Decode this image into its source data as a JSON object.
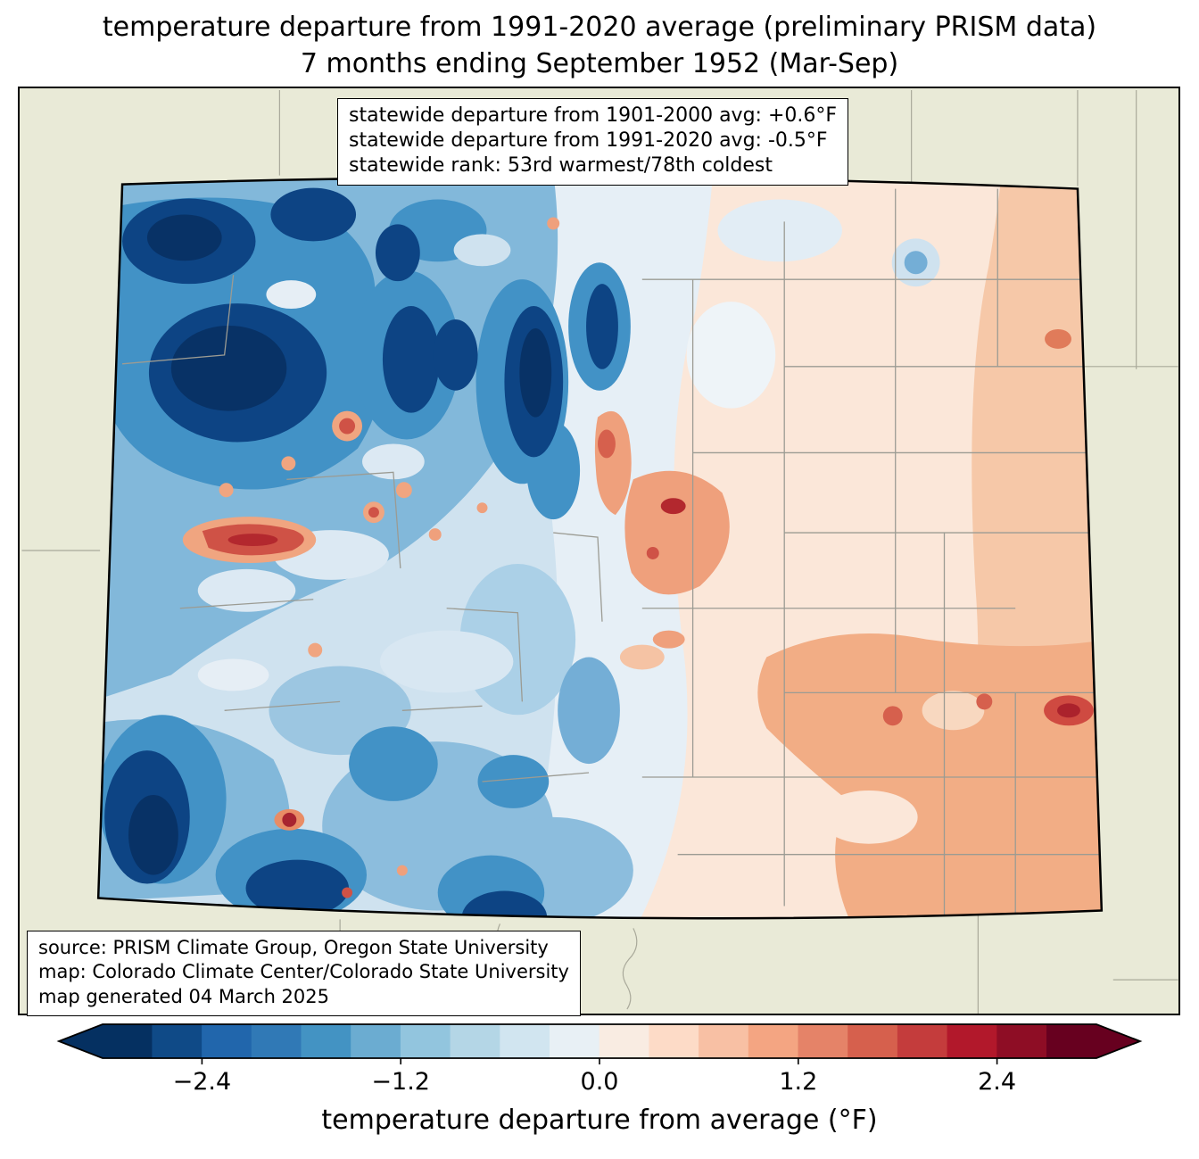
{
  "title": {
    "line1": "temperature departure from 1991-2020 average (preliminary PRISM data)",
    "line2": "7 months ending September 1952 (Mar-Sep)"
  },
  "stats_box": {
    "lines": [
      "statewide departure from 1901-2000 avg: +0.6°F",
      "statewide departure from 1991-2020 avg: -0.5°F",
      "statewide rank: 53rd warmest/78th coldest"
    ]
  },
  "source_box": {
    "lines": [
      "source: PRISM Climate Group, Oregon State University",
      "map: Colorado Climate Center/Colorado State University",
      "map generated 04 March 2025"
    ]
  },
  "colorbar": {
    "label": "temperature departure from average (°F)",
    "range": [
      -3.0,
      3.0
    ],
    "ticks": [
      {
        "value": -2.4,
        "label": "−2.4"
      },
      {
        "value": -1.2,
        "label": "−1.2"
      },
      {
        "value": 0.0,
        "label": "0.0"
      },
      {
        "value": 1.2,
        "label": "1.2"
      },
      {
        "value": 2.4,
        "label": "2.4"
      }
    ],
    "colors": [
      "#053061",
      "#0f4a87",
      "#2166ac",
      "#3079b6",
      "#4393c3",
      "#6bacd1",
      "#92c5de",
      "#b4d6e6",
      "#d1e5f0",
      "#e8f0f5",
      "#f9ece2",
      "#fddbc7",
      "#f8c0a4",
      "#f4a582",
      "#e58368",
      "#d6604d",
      "#c43c3c",
      "#b2182b",
      "#8e0d25",
      "#67001f"
    ]
  },
  "map_colors": {
    "land_background": "#e9ead7",
    "state_border": "#000000",
    "county_line": "#9b9b93",
    "cold_dark": "#083266",
    "warm_dark": "#a82430"
  }
}
